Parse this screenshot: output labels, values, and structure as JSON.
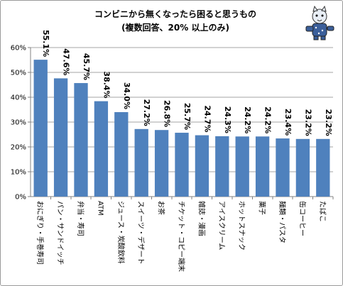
{
  "chart_data": {
    "type": "bar",
    "title": "コンビニから無くなったら困ると思うもの",
    "subtitle": "(複数回答、20% 以上のみ)",
    "categories": [
      "おにぎり・手巻寿司",
      "パン・サンドイッチ",
      "弁当・寿司",
      "ATM",
      "ジュース・炭酸飲料",
      "スイーツ・デザート",
      "お茶",
      "チケット・コピー端末",
      "雑誌・漫画",
      "アイスクリーム",
      "ホットスナック",
      "菓子",
      "麺類・パスタ",
      "缶コーヒー",
      "たばこ"
    ],
    "values": [
      55.1,
      47.6,
      45.7,
      38.4,
      34.0,
      27.2,
      26.8,
      25.7,
      24.7,
      24.3,
      24.2,
      24.2,
      23.4,
      23.2,
      23.2
    ],
    "value_labels": [
      "55.1%",
      "47.6%",
      "45.7%",
      "38.4%",
      "34.0%",
      "27.2%",
      "26.8%",
      "25.7%",
      "24.7%",
      "24.3%",
      "24.2%",
      "24.2%",
      "23.4%",
      "23.2%",
      "23.2%"
    ],
    "ylim": [
      0,
      60
    ],
    "yticks": [
      0,
      10,
      20,
      30,
      40,
      50,
      60
    ],
    "ytick_labels": [
      "0%",
      "10%",
      "20%",
      "30%",
      "40%",
      "50%",
      "60%"
    ],
    "bar_color": "#4f81bd",
    "grid": "horizontal",
    "legend": "none"
  },
  "mascot_icon": "cat-mascot-icon"
}
